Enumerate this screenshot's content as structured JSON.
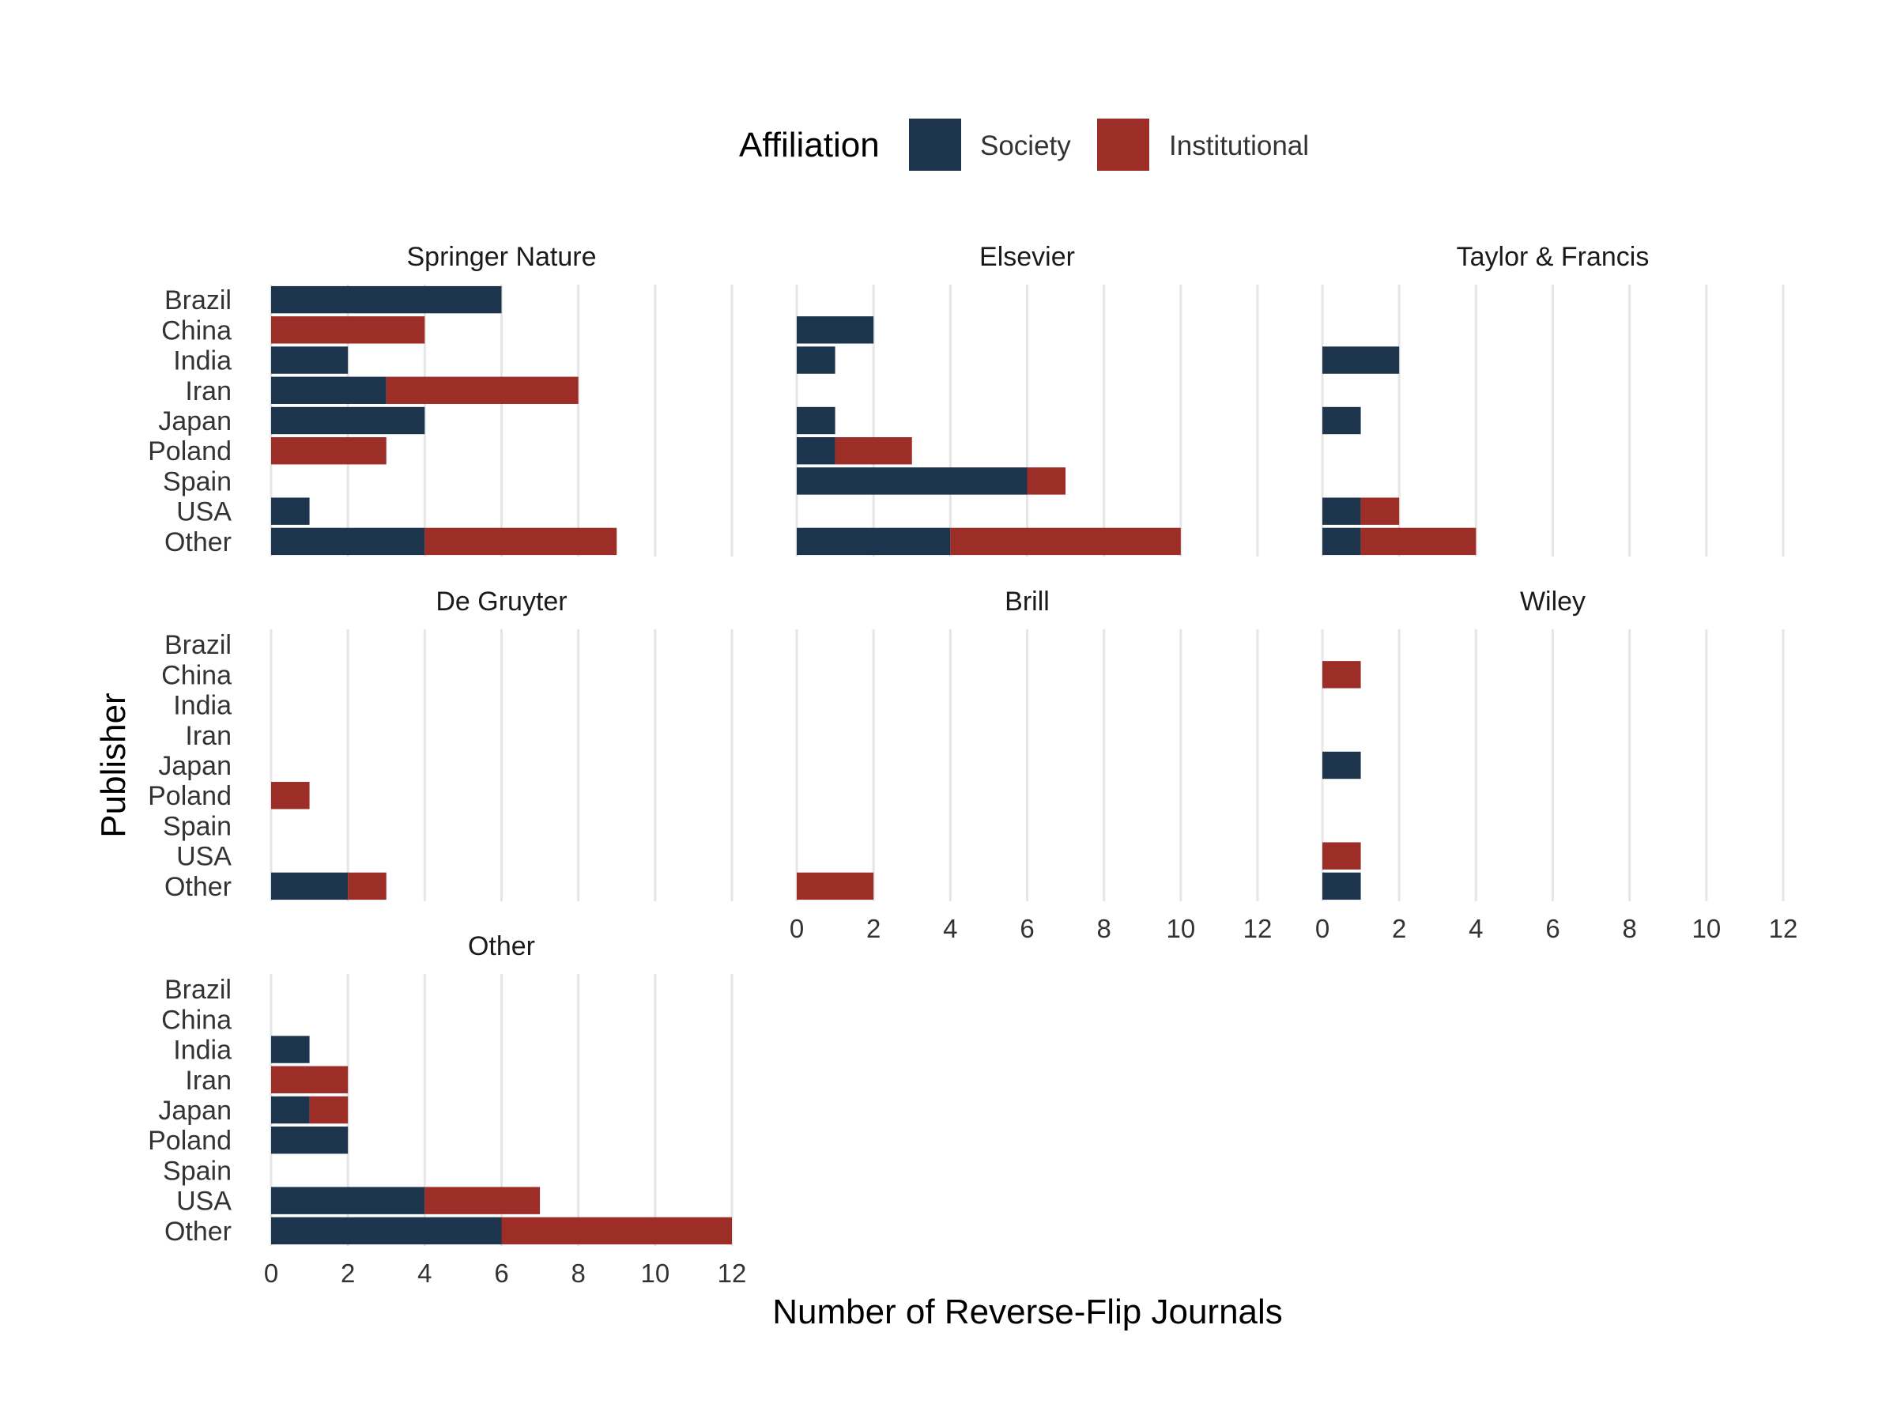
{
  "chart_data": {
    "type": "bar",
    "orientation": "horizontal",
    "stacked": true,
    "xlabel": "Number of Reverse-Flip Journals",
    "ylabel": "Publisher",
    "xlim": [
      0,
      12
    ],
    "xticks": [
      0,
      2,
      4,
      6,
      8,
      10,
      12
    ],
    "grid": "vertical major only",
    "legend": {
      "title": "Affiliation",
      "position": "top",
      "entries": [
        {
          "name": "Society",
          "color": "#1d344d"
        },
        {
          "name": "Institutional",
          "color": "#9c2d27"
        }
      ]
    },
    "categories": [
      "Brazil",
      "China",
      "India",
      "Iran",
      "Japan",
      "Poland",
      "Spain",
      "USA",
      "Other"
    ],
    "panels": [
      {
        "title": "Springer Nature",
        "society": [
          6,
          0,
          2,
          3,
          4,
          0,
          0,
          1,
          4
        ],
        "institutional": [
          0,
          4,
          0,
          5,
          0,
          3,
          0,
          0,
          5
        ]
      },
      {
        "title": "Elsevier",
        "society": [
          0,
          2,
          1,
          0,
          1,
          1,
          6,
          0,
          4
        ],
        "institutional": [
          0,
          0,
          0,
          0,
          0,
          2,
          1,
          0,
          6
        ]
      },
      {
        "title": "Taylor & Francis",
        "society": [
          0,
          0,
          2,
          0,
          1,
          0,
          0,
          1,
          1
        ],
        "institutional": [
          0,
          0,
          0,
          0,
          0,
          0,
          0,
          1,
          3
        ]
      },
      {
        "title": "De Gruyter",
        "society": [
          0,
          0,
          0,
          0,
          0,
          0,
          0,
          0,
          2
        ],
        "institutional": [
          0,
          0,
          0,
          0,
          0,
          1,
          0,
          0,
          1
        ]
      },
      {
        "title": "Brill",
        "society": [
          0,
          0,
          0,
          0,
          0,
          0,
          0,
          0,
          0
        ],
        "institutional": [
          0,
          0,
          0,
          0,
          0,
          0,
          0,
          0,
          2
        ]
      },
      {
        "title": "Wiley",
        "society": [
          0,
          0,
          0,
          0,
          1,
          0,
          0,
          0,
          1
        ],
        "institutional": [
          0,
          1,
          0,
          0,
          0,
          0,
          0,
          1,
          0
        ]
      },
      {
        "title": "Other",
        "society": [
          0,
          0,
          1,
          0,
          1,
          2,
          0,
          4,
          6
        ],
        "institutional": [
          0,
          0,
          0,
          2,
          1,
          0,
          0,
          3,
          6
        ]
      }
    ]
  }
}
